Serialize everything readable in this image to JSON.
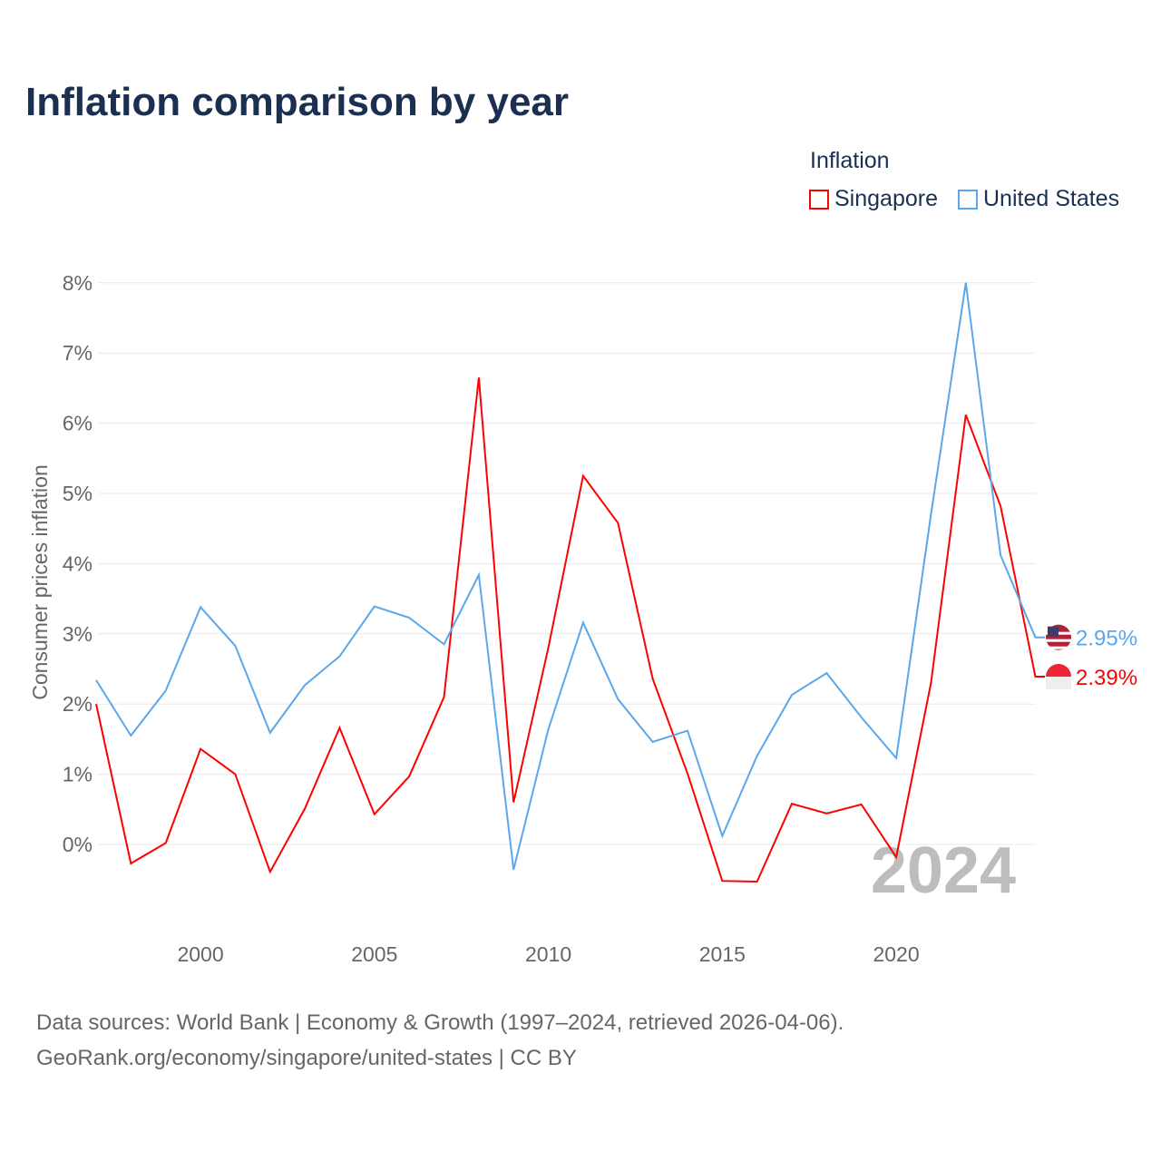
{
  "title": "Inflation comparison by year",
  "legend": {
    "title": "Inflation",
    "items": [
      "Singapore",
      "United States"
    ]
  },
  "footer": {
    "line1": "Data sources: World Bank | Economy & Growth (1997–2024, retrieved 2026-04-06).",
    "line2": "GeoRank.org/economy/singapore/united-states | CC BY"
  },
  "year_watermark": "2024",
  "colors": {
    "Singapore": "#ff0000",
    "United States": "#5aa7ec"
  },
  "chart_data": {
    "type": "line",
    "title": "Inflation comparison by year",
    "ylabel": "Consumer prices inflation",
    "xlabel": "",
    "ylim": [
      -1,
      8
    ],
    "xlim": [
      1997,
      2024
    ],
    "yticks": [
      "0%",
      "1%",
      "2%",
      "3%",
      "4%",
      "5%",
      "6%",
      "7%",
      "8%"
    ],
    "xticks": [
      "2000",
      "2005",
      "2010",
      "2015",
      "2020"
    ],
    "x": [
      1997,
      1998,
      1999,
      2000,
      2001,
      2002,
      2003,
      2004,
      2005,
      2006,
      2007,
      2008,
      2009,
      2010,
      2011,
      2012,
      2013,
      2014,
      2015,
      2016,
      2017,
      2018,
      2019,
      2020,
      2021,
      2022,
      2023,
      2024
    ],
    "series": [
      {
        "name": "Singapore",
        "end_label": "2.39%",
        "values": [
          2.0,
          -0.27,
          0.02,
          1.36,
          1.0,
          -0.39,
          0.51,
          1.66,
          0.43,
          0.97,
          2.1,
          6.65,
          0.6,
          2.8,
          5.25,
          4.58,
          2.36,
          1.01,
          -0.52,
          -0.53,
          0.58,
          0.44,
          0.57,
          -0.18,
          2.3,
          6.12,
          4.82,
          2.39
        ]
      },
      {
        "name": "United States",
        "end_label": "2.95%",
        "values": [
          2.34,
          1.55,
          2.19,
          3.38,
          2.83,
          1.59,
          2.27,
          2.68,
          3.39,
          3.23,
          2.85,
          3.84,
          -0.36,
          1.64,
          3.16,
          2.07,
          1.46,
          1.62,
          0.12,
          1.26,
          2.13,
          2.44,
          1.81,
          1.23,
          4.7,
          8.0,
          4.12,
          2.95
        ]
      }
    ],
    "grid": true,
    "legend_position": "top-right"
  }
}
